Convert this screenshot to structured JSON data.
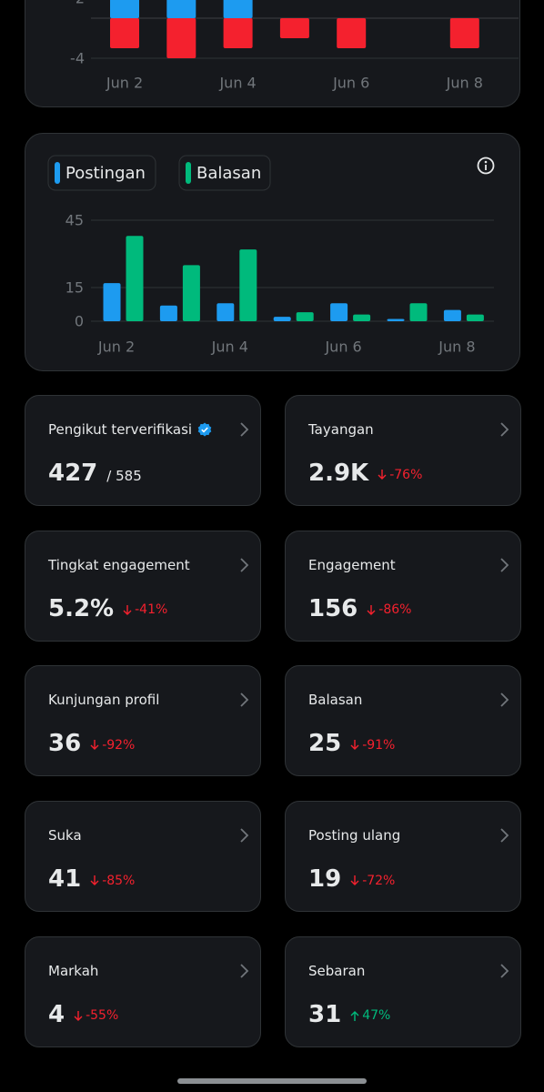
{
  "top_chart": {
    "type": "bar",
    "categories": [
      "Jun 2",
      null,
      "Jun 4",
      null,
      "Jun 6",
      null,
      "Jun 8"
    ],
    "series": [
      {
        "color": "#1d9bf0",
        "values": [
          2,
          2,
          2,
          0,
          0,
          0,
          0
        ]
      },
      {
        "color": "#f4212e",
        "values": [
          -3,
          -4,
          -3,
          -2,
          -3,
          0,
          -3
        ]
      }
    ],
    "ylim": [
      -4,
      2
    ],
    "yticks": [
      2,
      -4
    ],
    "grid": true
  },
  "activity_chart": {
    "type": "grouped_bar",
    "categories": [
      "Jun 2",
      null,
      "Jun 4",
      null,
      "Jun 6",
      null,
      "Jun 8"
    ],
    "series": [
      {
        "name": "Postingan",
        "color": "#1d9bf0",
        "values": [
          17,
          7,
          8,
          2,
          8,
          1,
          5
        ]
      },
      {
        "name": "Balasan",
        "color": "#00ba7c",
        "values": [
          38,
          25,
          32,
          4,
          3,
          8,
          3
        ]
      }
    ],
    "ylim": [
      0,
      45
    ],
    "yticks": [
      45,
      15,
      0
    ],
    "grid": true
  },
  "cards": [
    {
      "title": "Pengikut terverifikasi",
      "value": "427",
      "total": "/ 585",
      "verified": true
    },
    {
      "title": "Tayangan",
      "value": "2.9K",
      "change": "-76%",
      "trend": "down"
    },
    {
      "title": "Tingkat engagement",
      "value": "5.2%",
      "change": "-41%",
      "trend": "down"
    },
    {
      "title": "Engagement",
      "value": "156",
      "change": "-86%",
      "trend": "down"
    },
    {
      "title": "Kunjungan profil",
      "value": "36",
      "change": "-92%",
      "trend": "down"
    },
    {
      "title": "Balasan",
      "value": "25",
      "change": "-91%",
      "trend": "down"
    },
    {
      "title": "Suka",
      "value": "41",
      "change": "-85%",
      "trend": "down"
    },
    {
      "title": "Posting ulang",
      "value": "19",
      "change": "-72%",
      "trend": "down"
    },
    {
      "title": "Markah",
      "value": "4",
      "change": "-55%",
      "trend": "down"
    },
    {
      "title": "Sebaran",
      "value": "31",
      "change": "47%",
      "trend": "up"
    }
  ]
}
